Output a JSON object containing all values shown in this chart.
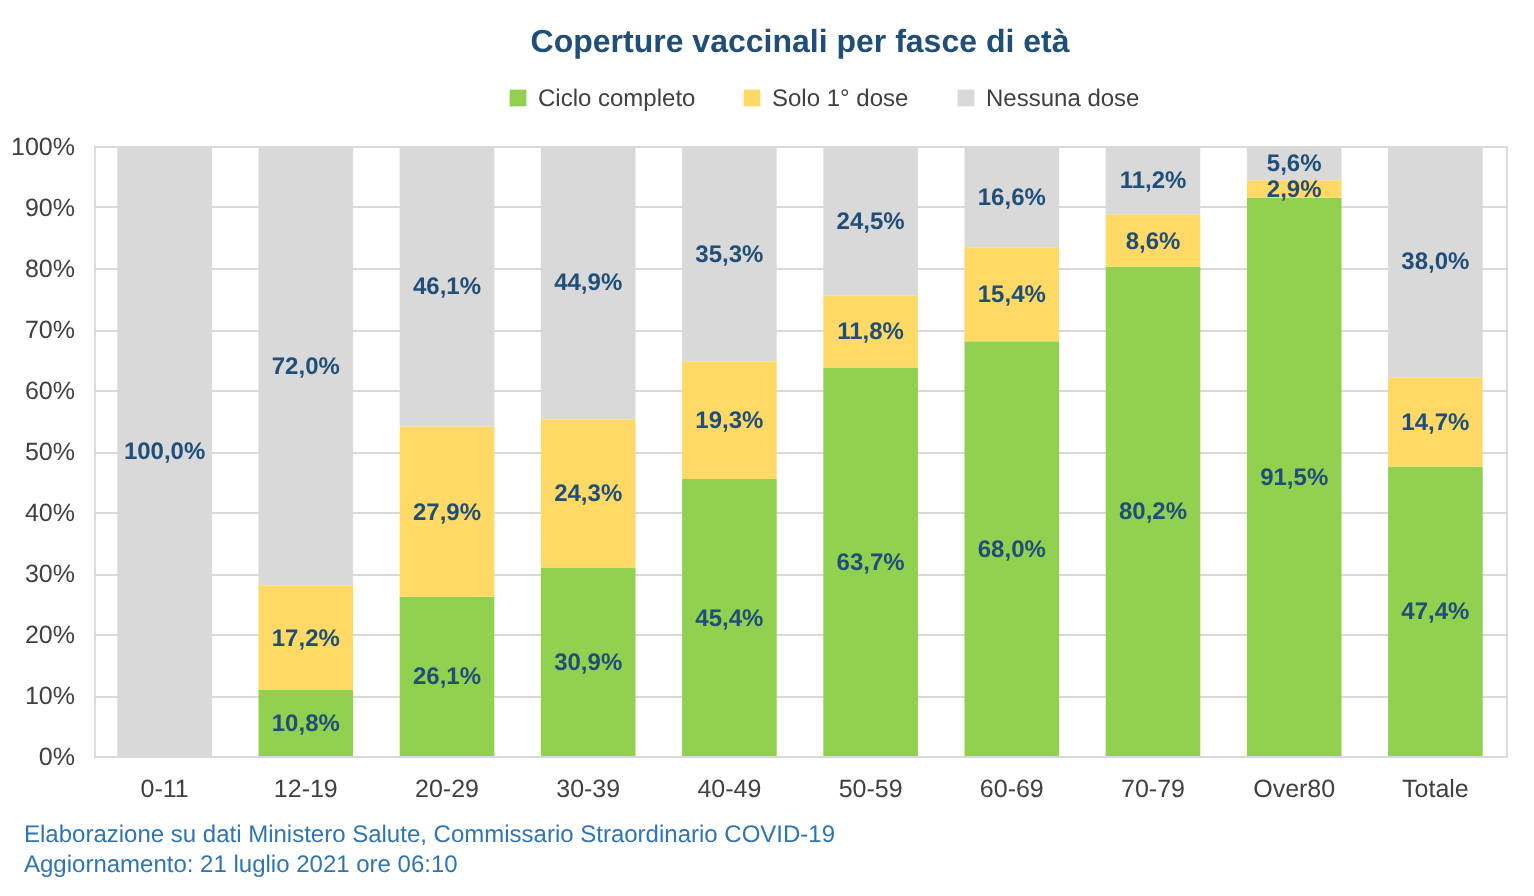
{
  "chart_data": {
    "type": "bar",
    "title": "Coperture vaccinali per fasce di età",
    "categories": [
      "0-11",
      "12-19",
      "20-29",
      "30-39",
      "40-49",
      "50-59",
      "60-69",
      "70-79",
      "Over80",
      "Totale"
    ],
    "stacked": true,
    "series": [
      {
        "name": "Ciclo completo",
        "color": "#92d050",
        "values": [
          0,
          10.8,
          26.1,
          30.9,
          45.4,
          63.7,
          68.0,
          80.2,
          91.5,
          47.4
        ],
        "value_labels": [
          null,
          "10,8%",
          "26,1%",
          "30,9%",
          "45,4%",
          "63,7%",
          "68,0%",
          "80,2%",
          "91,5%",
          "47,4%"
        ]
      },
      {
        "name": "Solo 1° dose",
        "color": "#ffd966",
        "values": [
          0,
          17.2,
          27.9,
          24.3,
          19.3,
          11.8,
          15.4,
          8.6,
          2.9,
          14.7
        ],
        "value_labels": [
          null,
          "17,2%",
          "27,9%",
          "24,3%",
          "19,3%",
          "11,8%",
          "15,4%",
          "8,6%",
          "2,9%",
          "14,7%"
        ]
      },
      {
        "name": "Nessuna dose",
        "color": "#d9d9d9",
        "values": [
          100.0,
          72.0,
          46.1,
          44.9,
          35.3,
          24.5,
          16.6,
          11.2,
          5.6,
          38.0
        ],
        "value_labels": [
          "100,0%",
          "72,0%",
          "46,1%",
          "44,9%",
          "35,3%",
          "24,5%",
          "16,6%",
          "11,2%",
          "5,6%",
          "38,0%"
        ]
      }
    ],
    "ylim": [
      0,
      100
    ],
    "yticks": [
      {
        "value": 0,
        "label": "0%"
      },
      {
        "value": 10,
        "label": "10%"
      },
      {
        "value": 20,
        "label": "20%"
      },
      {
        "value": 30,
        "label": "30%"
      },
      {
        "value": 40,
        "label": "40%"
      },
      {
        "value": 50,
        "label": "50%"
      },
      {
        "value": 60,
        "label": "60%"
      },
      {
        "value": 70,
        "label": "70%"
      },
      {
        "value": 80,
        "label": "80%"
      },
      {
        "value": 90,
        "label": "90%"
      },
      {
        "value": 100,
        "label": "100%"
      }
    ],
    "grid": "y",
    "legend": "top",
    "annotations": [
      "Elaborazione su dati Ministero Salute, Commissario Straordinario COVID-19",
      "Aggiornamento: 21 luglio 2021 ore 06:10"
    ]
  }
}
